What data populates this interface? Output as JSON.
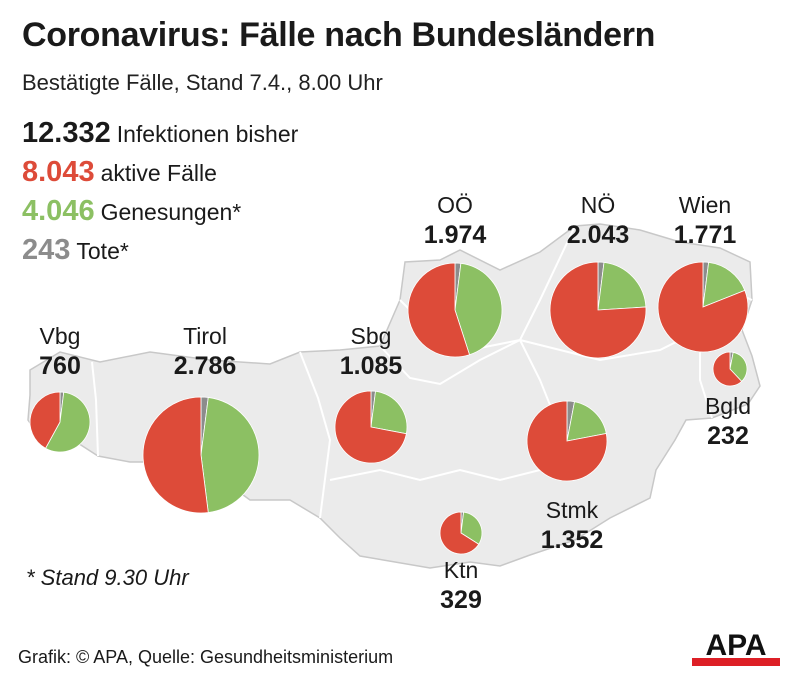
{
  "title": "Coronavirus: Fälle nach Bundesländern",
  "subtitle": "Bestätigte Fälle, Stand 7.4., 8.00 Uhr",
  "totals": [
    {
      "value": "12.332",
      "label": "Infektionen bisher",
      "color": "#1a1a1a"
    },
    {
      "value": "8.043",
      "label": "aktive Fälle",
      "color": "#dd4b39"
    },
    {
      "value": "4.046",
      "label": "Genesungen*",
      "color": "#8cc063"
    },
    {
      "value": "243",
      "label": "Tote*",
      "color": "#8c8c8c"
    }
  ],
  "note": "* Stand 9.30 Uhr",
  "credit": "Grafik: © APA, Quelle: Gesundheitsministerium",
  "logo_text": "APA",
  "colors": {
    "active": "#dd4b39",
    "recovered": "#8cc063",
    "deaths": "#8c8c8c",
    "map_fill": "#ebebeb",
    "map_border": "#c8c8c8"
  },
  "regions": [
    {
      "id": "vbg",
      "name": "Vbg",
      "value": "760",
      "active_share": 0.42,
      "recovered_share": 0.56
    },
    {
      "id": "tirol",
      "name": "Tirol",
      "value": "2.786",
      "active_share": 0.52,
      "recovered_share": 0.46
    },
    {
      "id": "sbg",
      "name": "Sbg",
      "value": "1.085",
      "active_share": 0.72,
      "recovered_share": 0.26
    },
    {
      "id": "ooe",
      "name": "OÖ",
      "value": "1.974",
      "active_share": 0.55,
      "recovered_share": 0.43
    },
    {
      "id": "noe",
      "name": "NÖ",
      "value": "2.043",
      "active_share": 0.76,
      "recovered_share": 0.22
    },
    {
      "id": "wien",
      "name": "Wien",
      "value": "1.771",
      "active_share": 0.81,
      "recovered_share": 0.17
    },
    {
      "id": "bgld",
      "name": "Bgld",
      "value": "232",
      "active_share": 0.62,
      "recovered_share": 0.35
    },
    {
      "id": "stmk",
      "name": "Stmk",
      "value": "1.352",
      "active_share": 0.78,
      "recovered_share": 0.19
    },
    {
      "id": "ktn",
      "name": "Ktn",
      "value": "329",
      "active_share": 0.66,
      "recovered_share": 0.32
    }
  ]
}
